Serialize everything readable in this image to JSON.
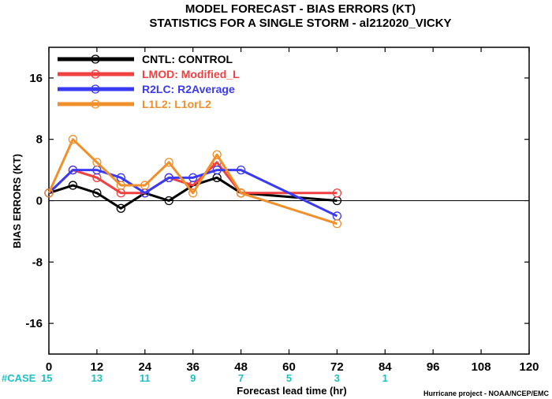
{
  "chart_data": {
    "type": "line",
    "title": "MODEL FORECAST - BIAS ERRORS (KT)",
    "subtitle": "STATISTICS FOR A SINGLE STORM - al212020_VICKY",
    "xlabel": "Forecast lead time (hr)",
    "ylabel": "BIAS ERRORS (KT)",
    "xlim": [
      0,
      120
    ],
    "ylim": [
      -20,
      20
    ],
    "x_ticks": [
      0,
      12,
      24,
      36,
      48,
      60,
      72,
      84,
      96,
      108,
      120
    ],
    "y_ticks": [
      -16,
      -8,
      0,
      8,
      16
    ],
    "legend_position": "top-left",
    "series": [
      {
        "name": "CNTL: CONTROL",
        "color": "#000000",
        "x": [
          0,
          6,
          12,
          18,
          24,
          30,
          36,
          42,
          48,
          72
        ],
        "y": [
          1,
          2,
          1,
          -1,
          1,
          0,
          2,
          3,
          1,
          0
        ]
      },
      {
        "name": "LMOD: Modified_L",
        "color": "#f04040",
        "x": [
          0,
          6,
          12,
          18,
          24,
          30,
          36,
          42,
          48,
          72
        ],
        "y": [
          1,
          4,
          3,
          1,
          1,
          3,
          2,
          5,
          1,
          1
        ]
      },
      {
        "name": "R2LC: R2Average",
        "color": "#3a3af5",
        "x": [
          0,
          6,
          12,
          18,
          24,
          30,
          36,
          42,
          48,
          72
        ],
        "y": [
          1,
          4,
          4,
          3,
          1,
          3,
          3,
          4,
          4,
          -2
        ]
      },
      {
        "name": "L1L2: L1orL2",
        "color": "#f0902a",
        "x": [
          0,
          6,
          12,
          18,
          24,
          30,
          36,
          42,
          48,
          72
        ],
        "y": [
          1,
          8,
          5,
          2,
          2,
          5,
          1,
          6,
          1,
          -3
        ]
      }
    ],
    "case_counts": {
      "label": "#CASE",
      "label_color": "#20c0c0",
      "x": [
        0,
        12,
        24,
        36,
        48,
        60,
        72,
        84
      ],
      "values": [
        "15",
        "13",
        "11",
        "9",
        "7",
        "5",
        "3",
        "1"
      ]
    },
    "grid": false,
    "zero_line": true
  },
  "credit": "Hurricane project - NOAA/NCEP/EMC"
}
